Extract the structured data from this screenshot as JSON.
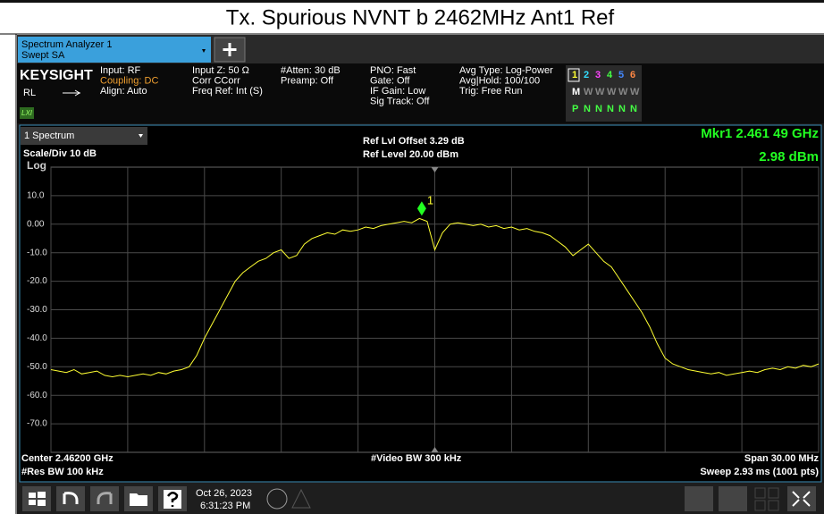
{
  "header": {
    "title": "Tx. Spurious NVNT b 2462MHz Ant1 Ref"
  },
  "tab": {
    "line1": "Spectrum Analyzer 1",
    "line2": "Swept SA"
  },
  "info": {
    "brand": "KEYSIGHT",
    "rl": "RL",
    "lxi": "LXI",
    "columns": [
      [
        "Input: RF",
        "Coupling: DC",
        "Align: Auto"
      ],
      [
        "Input Z: 50 Ω",
        "Corr CCorr",
        "Freq Ref: Int (S)"
      ],
      [
        "#Atten: 30 dB",
        "Preamp: Off"
      ],
      [
        "PNO: Fast",
        "Gate: Off",
        "IF Gain: Low",
        "Sig Track: Off"
      ],
      [
        "Avg Type: Log-Power",
        "Avg|Hold: 100/100",
        "Trig: Free Run"
      ]
    ],
    "traces": [
      [
        "1",
        "2",
        "3",
        "4",
        "5",
        "6"
      ],
      [
        "M",
        "W",
        "W",
        "W",
        "W",
        "W"
      ],
      [
        "P",
        "N",
        "N",
        "N",
        "N",
        "N"
      ]
    ]
  },
  "panel": {
    "name": "1 Spectrum",
    "scale": "Scale/Div 10 dB",
    "log": "Log",
    "ref_offset": "Ref Lvl Offset 3.29 dB",
    "ref_level": "Ref Level 20.00 dBm",
    "marker_freq": "Mkr1  2.461 49 GHz",
    "marker_level": "2.98 dBm",
    "center": "Center 2.46200 GHz",
    "rbw": "#Res BW 100 kHz",
    "vbw": "#Video BW 300 kHz",
    "span": "Span 30.00 MHz",
    "sweep": "Sweep 2.93 ms (1001 pts)"
  },
  "chart_data": {
    "type": "line",
    "color": "#ffff33",
    "xlim": [
      2.447,
      2.477
    ],
    "ylim": [
      -80,
      20
    ],
    "xticks": [
      2.447,
      2.45,
      2.453,
      2.456,
      2.459,
      2.462,
      2.465,
      2.468,
      2.471,
      2.474,
      2.477
    ],
    "yticks": [
      {
        "value": 10,
        "label": "10.0"
      },
      {
        "value": 0,
        "label": "0.00"
      },
      {
        "value": -10,
        "label": "-10.0"
      },
      {
        "value": -20,
        "label": "-20.0"
      },
      {
        "value": -30,
        "label": "-30.0"
      },
      {
        "value": -40,
        "label": "-40.0"
      },
      {
        "value": -50,
        "label": "-50.0"
      },
      {
        "value": -60,
        "label": "-60.0"
      },
      {
        "value": -70,
        "label": "-70.0"
      }
    ],
    "values": [
      -51,
      -51.5,
      -52,
      -51,
      -52.5,
      -52,
      -51.5,
      -53,
      -53.5,
      -53,
      -53.5,
      -53,
      -52.5,
      -53,
      -52,
      -52.5,
      -51.5,
      -51,
      -50,
      -46,
      -40,
      -35,
      -30,
      -25,
      -20,
      -17,
      -15,
      -13,
      -12,
      -10,
      -9,
      -12,
      -11,
      -7,
      -5,
      -4,
      -3,
      -3.5,
      -2,
      -2.5,
      -2,
      -1,
      -1.5,
      -0.5,
      0,
      0.5,
      1,
      0.5,
      2,
      1,
      -9,
      -3,
      0,
      0.5,
      0,
      -0.5,
      0,
      -1,
      -0.5,
      -1.5,
      -1,
      -2,
      -1.5,
      -2.5,
      -3,
      -4,
      -6,
      -8,
      -11,
      -9,
      -7,
      -10,
      -13,
      -15,
      -19,
      -23,
      -27,
      -31,
      -36,
      -42,
      -47,
      -49,
      -50,
      -51,
      -51.5,
      -52,
      -52.5,
      -52,
      -53,
      -52.5,
      -52,
      -51.5,
      -52,
      -51,
      -50.5,
      -51,
      -50,
      -50.5,
      -49.5,
      -50,
      -49
    ],
    "marker": {
      "x": 2.46149,
      "y": 2.98,
      "label": "1"
    }
  },
  "taskbar": {
    "date": "Oct 26, 2023",
    "time": "6:31:23 PM"
  }
}
